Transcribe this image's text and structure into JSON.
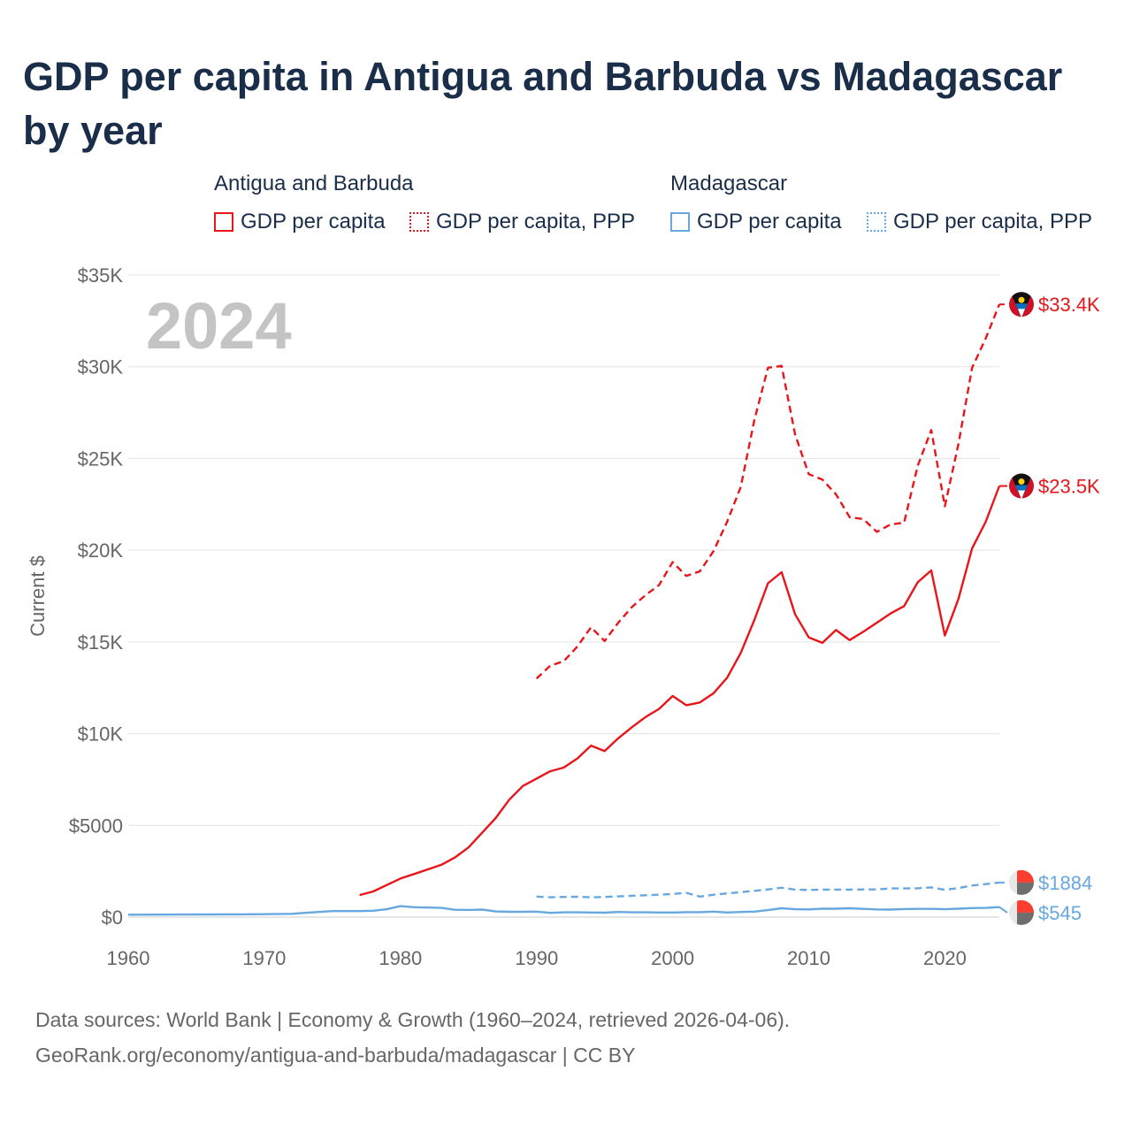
{
  "title": "GDP per capita in Antigua and Barbuda vs Madagascar by year",
  "legend": {
    "groups": [
      {
        "country": "Antigua and Barbuda",
        "items": [
          "GDP per capita",
          "GDP per capita, PPP"
        ]
      },
      {
        "country": "Madagascar",
        "items": [
          "GDP per capita",
          "GDP per capita, PPP"
        ]
      }
    ]
  },
  "colors": {
    "antigua": "#e8151b",
    "madagascar": "#67a8e0",
    "grid": "#e3e3e3",
    "axis_text": "#666666",
    "year_watermark": "#c4c4c4"
  },
  "chart_data": {
    "type": "line",
    "title": "GDP per capita in Antigua and Barbuda vs Madagascar by year",
    "xlabel": "",
    "ylabel": "Current $",
    "xlim": [
      1960,
      2024
    ],
    "ylim": [
      0,
      35000
    ],
    "x_ticks": [
      1960,
      1970,
      1980,
      1990,
      2000,
      2010,
      2020
    ],
    "x_tick_labels": [
      "1960",
      "1970",
      "1980",
      "1990",
      "2000",
      "2010",
      "2020"
    ],
    "y_ticks": [
      0,
      5000,
      10000,
      15000,
      20000,
      25000,
      30000,
      35000
    ],
    "y_tick_labels": [
      "$0",
      "$5000",
      "$10K",
      "$15K",
      "$20K",
      "$25K",
      "$30K",
      "$35K"
    ],
    "year_label": "2024",
    "series": [
      {
        "name": "Antigua and Barbuda — GDP per capita",
        "country": "antigua",
        "style": "solid",
        "end_label": "$23.5K",
        "x": [
          1977,
          1978,
          1979,
          1980,
          1981,
          1982,
          1983,
          1984,
          1985,
          1986,
          1987,
          1988,
          1989,
          1990,
          1991,
          1992,
          1993,
          1994,
          1995,
          1996,
          1997,
          1998,
          1999,
          2000,
          2001,
          2002,
          2003,
          2004,
          2005,
          2006,
          2007,
          2008,
          2009,
          2010,
          2011,
          2012,
          2013,
          2014,
          2015,
          2016,
          2017,
          2018,
          2019,
          2020,
          2021,
          2022,
          2023,
          2024
        ],
        "values": [
          1200,
          1400,
          1750,
          2100,
          2350,
          2600,
          2850,
          3250,
          3800,
          4600,
          5400,
          6400,
          7150,
          7550,
          7950,
          8150,
          8650,
          9350,
          9050,
          9750,
          10350,
          10900,
          11350,
          12050,
          11550,
          11700,
          12200,
          13050,
          14400,
          16200,
          18200,
          18800,
          16500,
          15250,
          14950,
          15650,
          15100,
          15550,
          16050,
          16550,
          16950,
          18250,
          18900,
          15350,
          17350,
          20100,
          21550,
          23500
        ]
      },
      {
        "name": "Antigua and Barbuda — GDP per capita, PPP",
        "country": "antigua",
        "style": "dashed",
        "end_label": "$33.4K",
        "x": [
          1990,
          1991,
          1992,
          1993,
          1994,
          1995,
          1996,
          1997,
          1998,
          1999,
          2000,
          2001,
          2002,
          2003,
          2004,
          2005,
          2006,
          2007,
          2008,
          2009,
          2010,
          2011,
          2012,
          2013,
          2014,
          2015,
          2016,
          2017,
          2018,
          2019,
          2020,
          2021,
          2022,
          2023,
          2024
        ],
        "values": [
          13000,
          13700,
          13950,
          14750,
          15800,
          15050,
          16050,
          16900,
          17550,
          18100,
          19350,
          18600,
          18850,
          19950,
          21550,
          23450,
          27100,
          29950,
          30050,
          26300,
          24150,
          23850,
          23050,
          21800,
          21700,
          21000,
          21400,
          21500,
          24600,
          26550,
          22400,
          25800,
          29950,
          31550,
          33400
        ]
      },
      {
        "name": "Madagascar — GDP per capita",
        "country": "madagascar",
        "style": "solid",
        "end_label": "$545",
        "x": [
          1960,
          1962,
          1964,
          1966,
          1968,
          1970,
          1972,
          1973,
          1974,
          1975,
          1976,
          1977,
          1978,
          1979,
          1980,
          1981,
          1982,
          1983,
          1984,
          1985,
          1986,
          1987,
          1988,
          1989,
          1990,
          1991,
          1992,
          1993,
          1994,
          1995,
          1996,
          1997,
          1998,
          1999,
          2000,
          2001,
          2002,
          2003,
          2004,
          2005,
          2006,
          2007,
          2008,
          2009,
          2010,
          2011,
          2012,
          2013,
          2014,
          2015,
          2016,
          2017,
          2018,
          2019,
          2020,
          2021,
          2022,
          2023,
          2024
        ],
        "values": [
          130,
          135,
          140,
          145,
          150,
          160,
          180,
          230,
          280,
          330,
          330,
          330,
          345,
          430,
          600,
          540,
          520,
          500,
          400,
          390,
          410,
          310,
          290,
          290,
          300,
          230,
          260,
          260,
          250,
          240,
          280,
          260,
          260,
          250,
          250,
          270,
          270,
          300,
          250,
          280,
          300,
          380,
          480,
          430,
          420,
          460,
          460,
          480,
          450,
          420,
          410,
          440,
          450,
          450,
          430,
          460,
          490,
          500,
          545
        ]
      },
      {
        "name": "Madagascar — GDP per capita, PPP",
        "country": "madagascar",
        "style": "dashed",
        "end_label": "$1884",
        "x": [
          1990,
          1991,
          1992,
          1993,
          1994,
          1995,
          1996,
          1997,
          1998,
          1999,
          2000,
          2001,
          2002,
          2003,
          2004,
          2005,
          2006,
          2007,
          2008,
          2009,
          2010,
          2011,
          2012,
          2013,
          2014,
          2015,
          2016,
          2017,
          2018,
          2019,
          2020,
          2021,
          2022,
          2023,
          2024
        ],
        "values": [
          1120,
          1080,
          1100,
          1110,
          1080,
          1100,
          1130,
          1160,
          1190,
          1220,
          1260,
          1320,
          1120,
          1220,
          1290,
          1360,
          1430,
          1510,
          1600,
          1500,
          1480,
          1500,
          1500,
          1500,
          1510,
          1510,
          1560,
          1560,
          1570,
          1620,
          1490,
          1580,
          1720,
          1800,
          1884
        ]
      }
    ]
  },
  "footer": {
    "line1": "Data sources: World Bank | Economy & Growth (1960–2024, retrieved 2026-04-06).",
    "line2": "GeoRank.org/economy/antigua-and-barbuda/madagascar | CC BY"
  }
}
